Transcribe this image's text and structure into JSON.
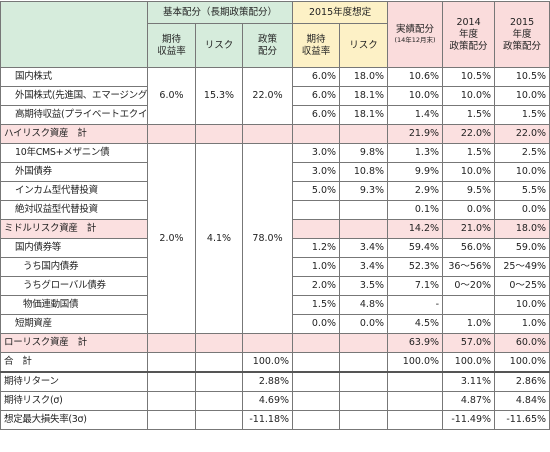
{
  "header": {
    "base_group": "基本配分（長期政策配分）",
    "fy2015_group": "2015年度想定",
    "actual": "実績配分",
    "actual_note": "(14年12月末)",
    "fy2014_policy": "2014\n年度\n政策配分",
    "fy2015_policy": "2015\n年度\n政策配分",
    "sub": [
      "期待\n収益率",
      "リスク",
      "政策\n配分",
      "期待\n収益率",
      "リスク"
    ]
  },
  "base_groups": [
    [
      "6.0%",
      "15.3%",
      "22.0%"
    ],
    [
      "2.0%",
      "4.1%",
      "78.0%"
    ]
  ],
  "rows": [
    {
      "label": "国内株式",
      "values": [
        "6.0%",
        "18.0%",
        "10.6%",
        "10.5%",
        "10.5%"
      ]
    },
    {
      "label": "外国株式(先進国、エマージング)",
      "values": [
        "6.0%",
        "18.1%",
        "10.0%",
        "10.0%",
        "10.0%"
      ]
    },
    {
      "label": "高期待収益(プライベートエクイティ)",
      "values": [
        "6.0%",
        "18.1%",
        "1.4%",
        "1.5%",
        "1.5%"
      ]
    },
    {
      "label": "ハイリスク資産　計",
      "values": [
        null,
        null,
        null,
        null,
        null,
        "21.9%",
        "22.0%",
        "22.0%"
      ]
    },
    {
      "label": "10年CMS+メザニン債",
      "values": [
        "3.0%",
        "9.8%",
        "1.3%",
        "1.5%",
        "2.5%"
      ]
    },
    {
      "label": "外国債券",
      "values": [
        "3.0%",
        "10.8%",
        "9.9%",
        "10.0%",
        "10.0%"
      ]
    },
    {
      "label": "インカム型代替投資",
      "values": [
        "5.0%",
        "9.3%",
        "2.9%",
        "9.5%",
        "5.5%"
      ]
    },
    {
      "label": "絶対収益型代替投資",
      "values": [
        null,
        null,
        "0.1%",
        "0.0%",
        "0.0%"
      ]
    },
    {
      "label": "ミドルリスク資産　計",
      "values": [
        null,
        null,
        "14.2%",
        "21.0%",
        "18.0%"
      ]
    },
    {
      "label": "国内債券等",
      "values": [
        "1.2%",
        "3.4%",
        "59.4%",
        "56.0%",
        "59.0%"
      ]
    },
    {
      "label": "うち国内債券",
      "values": [
        "1.0%",
        "3.4%",
        "52.3%",
        "36～56%",
        "25～49%"
      ]
    },
    {
      "label": "うちグローバル債券",
      "values": [
        "2.0%",
        "3.5%",
        "7.1%",
        "0～20%",
        "0～25%"
      ]
    },
    {
      "label": "物価連動国債",
      "values": [
        "1.5%",
        "4.8%",
        "-",
        null,
        "10.0%"
      ]
    },
    {
      "label": "短期資産",
      "values": [
        "0.0%",
        "0.0%",
        "4.5%",
        "1.0%",
        "1.0%"
      ]
    },
    {
      "label": "ローリスク資産　計",
      "values": [
        null,
        null,
        null,
        null,
        null,
        "63.9%",
        "57.0%",
        "60.0%"
      ]
    },
    {
      "label": "合　計",
      "values": [
        null,
        null,
        "100.0%",
        null,
        null,
        "100.0%",
        "100.0%",
        "100.0%"
      ]
    },
    {
      "label": "期待リターン",
      "values": [
        null,
        null,
        "2.88%",
        null,
        null,
        null,
        "3.11%",
        "2.86%"
      ]
    },
    {
      "label": "期待リスク(σ)",
      "values": [
        null,
        null,
        "4.69%",
        null,
        null,
        null,
        "4.87%",
        "4.84%"
      ]
    },
    {
      "label": "想定最大損失率(3σ)",
      "values": [
        null,
        null,
        "-11.18%",
        null,
        null,
        null,
        "-11.49%",
        "-11.65%"
      ]
    }
  ]
}
